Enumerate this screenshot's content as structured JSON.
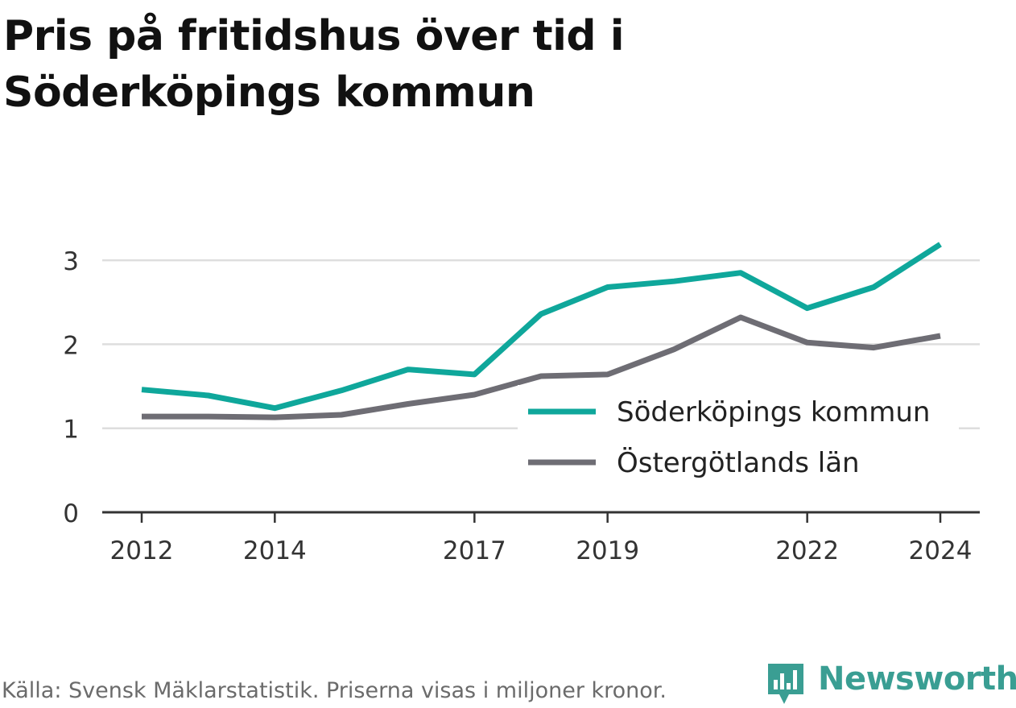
{
  "title_lines": [
    "Pris på fritidshus över tid i",
    "Söderköpings kommun"
  ],
  "footer": "Källa: Svensk Mäklarstatistik. Priserna visas i miljoner kronor.",
  "brand": "Newsworthy",
  "colors": {
    "teal": "#0fa79b",
    "gray": "#6e6d74",
    "grid": "#dedede",
    "axis": "#333333",
    "brand": "#3a9e93"
  },
  "chart_data": {
    "type": "line",
    "title": "Pris på fritidshus över tid i Söderköpings kommun",
    "xlabel": "",
    "ylabel": "",
    "x": [
      2012,
      2013,
      2014,
      2015,
      2016,
      2017,
      2018,
      2019,
      2020,
      2021,
      2022,
      2023,
      2024
    ],
    "xticks": [
      2012,
      2014,
      2017,
      2019,
      2022,
      2024
    ],
    "yticks": [
      0,
      1,
      2,
      3
    ],
    "ylim": [
      0,
      3.3
    ],
    "grid": true,
    "legend_position": "bottom-right",
    "series": [
      {
        "name": "Söderköpings kommun",
        "color": "#0fa79b",
        "values": [
          1.46,
          1.39,
          1.24,
          1.45,
          1.7,
          1.64,
          2.36,
          2.68,
          2.75,
          2.85,
          2.43,
          2.68,
          3.19
        ]
      },
      {
        "name": "Östergötlands län",
        "color": "#6e6d74",
        "values": [
          1.14,
          1.14,
          1.13,
          1.16,
          1.29,
          1.4,
          1.62,
          1.64,
          1.94,
          2.32,
          2.02,
          1.96,
          2.1
        ]
      }
    ]
  }
}
